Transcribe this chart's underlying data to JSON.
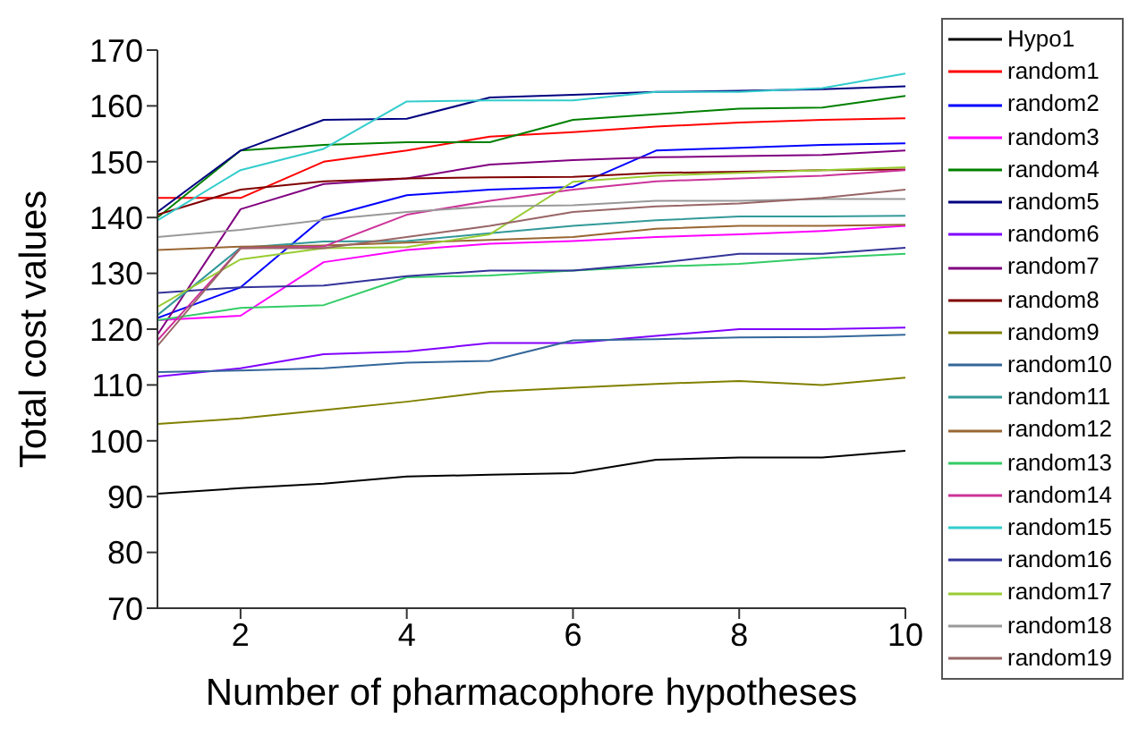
{
  "chart_data": {
    "type": "line",
    "xlabel": "Number of pharmacophore hypotheses",
    "ylabel": "Total cost values",
    "x": [
      1,
      2,
      3,
      4,
      5,
      6,
      7,
      8,
      9,
      10
    ],
    "xlim": [
      1,
      10
    ],
    "xticks": [
      2,
      4,
      6,
      8,
      10
    ],
    "ylim": [
      70,
      170
    ],
    "yticks": [
      70,
      80,
      90,
      100,
      110,
      120,
      130,
      140,
      150,
      160,
      170
    ],
    "grid": false,
    "legend": "right",
    "marker": "none",
    "line_style": "solid",
    "series": [
      {
        "name": "Hypo1",
        "color": "#000000",
        "values": [
          90.5,
          91.5,
          92.3,
          93.6,
          93.9,
          94.2,
          96.6,
          97,
          97,
          98.2
        ]
      },
      {
        "name": "random1",
        "color": "#ff0000",
        "values": [
          143.5,
          143.5,
          150,
          152,
          154.5,
          155.3,
          156.3,
          157,
          157.5,
          157.8
        ]
      },
      {
        "name": "random2",
        "color": "#0000ff",
        "values": [
          122,
          127.5,
          140,
          144,
          145,
          145.5,
          152,
          152.5,
          153,
          153.3
        ]
      },
      {
        "name": "random3",
        "color": "#ff00ff",
        "values": [
          121.6,
          122.4,
          132,
          134.2,
          135.3,
          135.8,
          136.5,
          137,
          137.6,
          138.5
        ]
      },
      {
        "name": "random4",
        "color": "#008000",
        "values": [
          140,
          152,
          153,
          153.5,
          153.5,
          157.5,
          158.5,
          159.5,
          159.7,
          161.8
        ]
      },
      {
        "name": "random5",
        "color": "#000080",
        "values": [
          141,
          152,
          157.5,
          157.7,
          161.5,
          162,
          162.5,
          162.7,
          163,
          163.5
        ]
      },
      {
        "name": "random6",
        "color": "#8000ff",
        "values": [
          111.5,
          113,
          115.5,
          116,
          117.5,
          117.5,
          118.8,
          120,
          120,
          120.3
        ]
      },
      {
        "name": "random7",
        "color": "#800080",
        "values": [
          119,
          141.5,
          146,
          147,
          149.5,
          150.3,
          150.8,
          151,
          151.2,
          152
        ]
      },
      {
        "name": "random8",
        "color": "#800000",
        "values": [
          140.5,
          145,
          146.5,
          147,
          147.2,
          147.3,
          148,
          148.2,
          148.5,
          148.6
        ]
      },
      {
        "name": "random9",
        "color": "#808000",
        "values": [
          103,
          104,
          105.5,
          107,
          108.8,
          109.5,
          110.2,
          110.7,
          110,
          111.3
        ]
      },
      {
        "name": "random10",
        "color": "#336699",
        "values": [
          112.3,
          112.6,
          113,
          114,
          114.3,
          118,
          118.2,
          118.5,
          118.6,
          119
        ]
      },
      {
        "name": "random11",
        "color": "#339999",
        "values": [
          122.5,
          134.6,
          135.7,
          135.8,
          137.2,
          138.5,
          139.5,
          140.2,
          140.2,
          140.3
        ]
      },
      {
        "name": "random12",
        "color": "#996633",
        "values": [
          134.2,
          134.8,
          135,
          135.5,
          136,
          136.5,
          138,
          138.5,
          138.5,
          138.7
        ]
      },
      {
        "name": "random13",
        "color": "#33cc66",
        "values": [
          121.6,
          123.8,
          124.3,
          129.3,
          129.6,
          130.5,
          131.2,
          131.7,
          132.8,
          133.5
        ]
      },
      {
        "name": "random14",
        "color": "#cc3399",
        "values": [
          118,
          134.5,
          134.8,
          140.5,
          143,
          145,
          146.5,
          147,
          147.5,
          148.5
        ]
      },
      {
        "name": "random15",
        "color": "#33cccc",
        "values": [
          139.5,
          148.5,
          152.3,
          160.8,
          161,
          161,
          162.5,
          162.5,
          163.2,
          165.8
        ]
      },
      {
        "name": "random16",
        "color": "#333399",
        "values": [
          126.5,
          127.5,
          127.8,
          129.5,
          130.5,
          130.5,
          131.8,
          133.5,
          133.5,
          134.6
        ]
      },
      {
        "name": "random17",
        "color": "#99cc33",
        "values": [
          124,
          132.5,
          134.5,
          134.7,
          137,
          146.4,
          147.5,
          148,
          148.5,
          149
        ]
      },
      {
        "name": "random18",
        "color": "#999999",
        "values": [
          136.5,
          137.8,
          139.6,
          141,
          142,
          142.2,
          143,
          143,
          143.3,
          143.3
        ]
      },
      {
        "name": "random19",
        "color": "#996666",
        "values": [
          117,
          134.5,
          134.5,
          136.5,
          138.5,
          141,
          142,
          142.5,
          143.5,
          145
        ]
      }
    ]
  }
}
